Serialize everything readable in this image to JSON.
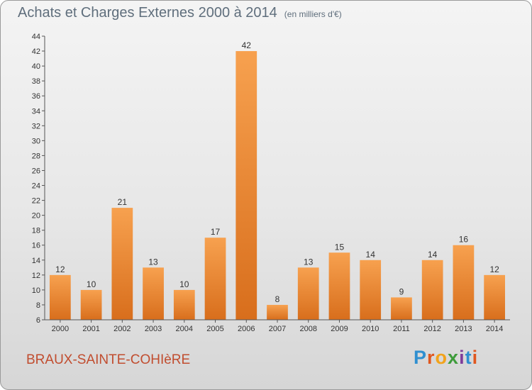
{
  "chart_data": {
    "type": "bar",
    "title": "Achats et Charges Externes 2000 à 2014",
    "unit": "(en milliers d'€)",
    "categories": [
      "2000",
      "2001",
      "2002",
      "2003",
      "2004",
      "2005",
      "2006",
      "2007",
      "2008",
      "2009",
      "2010",
      "2011",
      "2012",
      "2013",
      "2014"
    ],
    "values": [
      12,
      10,
      21,
      13,
      10,
      17,
      42,
      8,
      13,
      15,
      14,
      9,
      14,
      16,
      12
    ],
    "ylim": [
      6,
      44
    ],
    "yticks": [
      6,
      8,
      10,
      12,
      14,
      16,
      18,
      20,
      22,
      24,
      26,
      28,
      30,
      32,
      34,
      36,
      38,
      40,
      42,
      44
    ],
    "grid": false,
    "bar_color": "#f08a32"
  },
  "footer": {
    "commune": "BRAUX-SAINTE-COHIèRE",
    "logo_letters": [
      "P",
      "r",
      "o",
      "x",
      "i",
      "t",
      "i"
    ],
    "logo_colors": [
      "#2f8fd0",
      "#e0571f",
      "#f2a31c",
      "#3e9c3b",
      "#7f3d9b",
      "#2f8fd0",
      "#e0571f"
    ]
  }
}
